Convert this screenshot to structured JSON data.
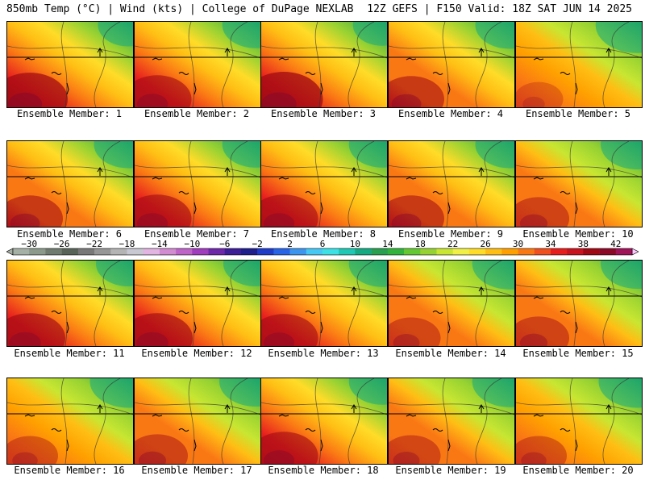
{
  "header": {
    "left": "850mb Temp (°C) | Wind (kts) | College of DuPage NEXLAB",
    "right": "12Z GEFS | F150 Valid: 18Z SAT JUN 14 2025"
  },
  "panel_label_prefix": "Ensemble Member: ",
  "panels": [
    {
      "member": 1,
      "label": "Ensemble Member: 1",
      "warmth": 0.9
    },
    {
      "member": 2,
      "label": "Ensemble Member: 2",
      "warmth": 0.75
    },
    {
      "member": 3,
      "label": "Ensemble Member: 3",
      "warmth": 0.95
    },
    {
      "member": 4,
      "label": "Ensemble Member: 4",
      "warmth": 0.7
    },
    {
      "member": 5,
      "label": "Ensemble Member: 5",
      "warmth": 0.35
    },
    {
      "member": 6,
      "label": "Ensemble Member: 6",
      "warmth": 0.7
    },
    {
      "member": 7,
      "label": "Ensemble Member: 7",
      "warmth": 0.75
    },
    {
      "member": 8,
      "label": "Ensemble Member: 8",
      "warmth": 0.75
    },
    {
      "member": 9,
      "label": "Ensemble Member: 9",
      "warmth": 0.7
    },
    {
      "member": 10,
      "label": "Ensemble Member: 10",
      "warmth": 0.6
    },
    {
      "member": 11,
      "label": "Ensemble Member: 11",
      "warmth": 0.8
    },
    {
      "member": 12,
      "label": "Ensemble Member: 12",
      "warmth": 0.8
    },
    {
      "member": 13,
      "label": "Ensemble Member: 13",
      "warmth": 0.75
    },
    {
      "member": 14,
      "label": "Ensemble Member: 14",
      "warmth": 0.55
    },
    {
      "member": 15,
      "label": "Ensemble Member: 15",
      "warmth": 0.6
    },
    {
      "member": 16,
      "label": "Ensemble Member: 16",
      "warmth": 0.5
    },
    {
      "member": 17,
      "label": "Ensemble Member: 17",
      "warmth": 0.6
    },
    {
      "member": 18,
      "label": "Ensemble Member: 18",
      "warmth": 0.75
    },
    {
      "member": 19,
      "label": "Ensemble Member: 19",
      "warmth": 0.55
    },
    {
      "member": 20,
      "label": "Ensemble Member: 20",
      "warmth": 0.5
    }
  ],
  "colorbar": {
    "tick_labels": [
      "-30",
      "-26",
      "-22",
      "-18",
      "-14",
      "-10",
      "-6",
      "-2",
      "2",
      "6",
      "10",
      "14",
      "18",
      "22",
      "26",
      "30",
      "34",
      "38",
      "42"
    ],
    "tick_values": [
      -30,
      -26,
      -22,
      -18,
      -14,
      -10,
      -6,
      -2,
      2,
      6,
      10,
      14,
      18,
      22,
      26,
      30,
      34,
      38,
      42
    ],
    "min": -32,
    "max": 44,
    "step": 2,
    "colors": [
      "#a6b1a6",
      "#8c9a8c",
      "#707c70",
      "#596459",
      "#787878",
      "#969696",
      "#b4b4b4",
      "#c8c8d2",
      "#e1b4e1",
      "#d28cd2",
      "#be64c8",
      "#a03cbe",
      "#6e28aa",
      "#3c1e96",
      "#1e1e8c",
      "#1e3cc8",
      "#2864e6",
      "#3c96f0",
      "#46c8f5",
      "#3ce1e6",
      "#1ec8b4",
      "#14aa82",
      "#28a050",
      "#32b43c",
      "#64c832",
      "#96d232",
      "#c8e632",
      "#f0f046",
      "#ffdc28",
      "#ffbe14",
      "#ffa000",
      "#fa7814",
      "#f0501e",
      "#e61e1e",
      "#c8141e",
      "#a00a14",
      "#8c0a28",
      "#a0145a",
      "#be1e8c",
      "#dc3cc8",
      "#f064e6",
      "#fa96fa",
      "#ffc8ff"
    ]
  }
}
